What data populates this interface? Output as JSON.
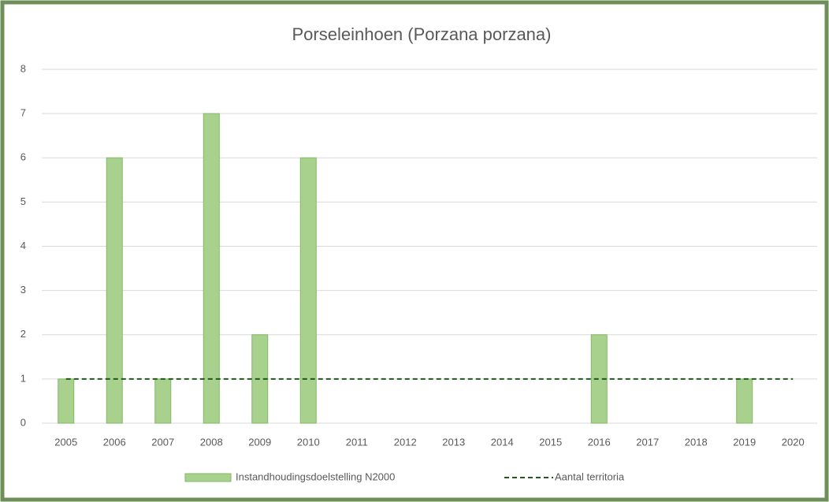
{
  "chart_data": {
    "type": "bar",
    "title": "Porseleinhoen (Porzana porzana)",
    "categories": [
      "2005",
      "2006",
      "2007",
      "2008",
      "2009",
      "2010",
      "2011",
      "2012",
      "2013",
      "2014",
      "2015",
      "2016",
      "2017",
      "2018",
      "2019",
      "2020"
    ],
    "series": [
      {
        "name": "Instandhoudingsdoelstelling N2000",
        "type": "bar",
        "color": "#a9d18e",
        "values": [
          1,
          6,
          1,
          7,
          2,
          6,
          0,
          0,
          0,
          0,
          0,
          2,
          0,
          0,
          1,
          0
        ]
      },
      {
        "name": "Aantal territoria",
        "type": "line",
        "color": "#1f5a1f",
        "dashed": true,
        "values": [
          1,
          1,
          1,
          1,
          1,
          1,
          1,
          1,
          1,
          1,
          1,
          1,
          1,
          1,
          1,
          1
        ]
      }
    ],
    "ylim": [
      0,
      8
    ],
    "yticks": [
      0,
      1,
      2,
      3,
      4,
      5,
      6,
      7,
      8
    ],
    "grid": true,
    "legend": "bottom"
  }
}
